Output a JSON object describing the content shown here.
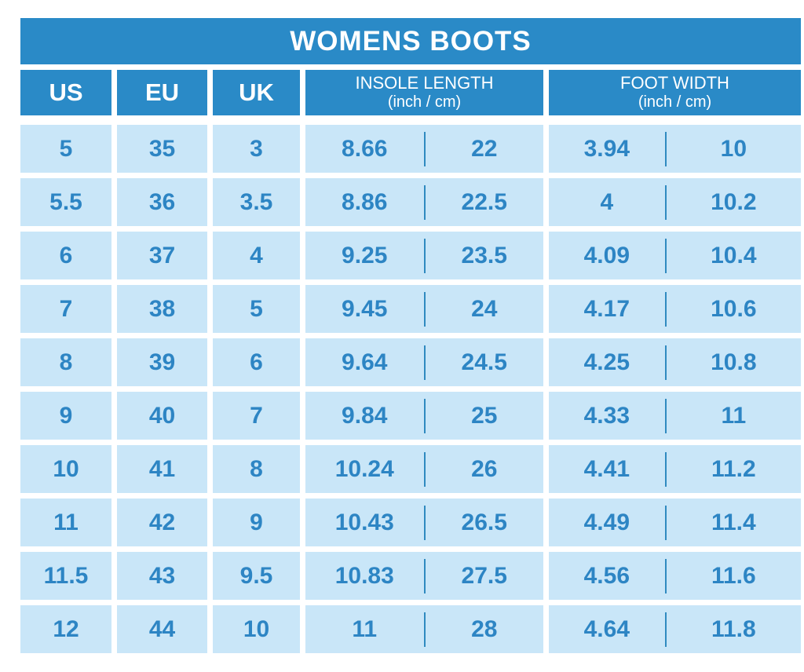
{
  "title": "WOMENS BOOTS",
  "colors": {
    "header_blue": "#2a8ac7",
    "cell_light_blue": "#c9e6f8",
    "data_text_blue": "#2d85c4",
    "divider_blue": "#2f8ac0",
    "background": "#ffffff"
  },
  "header": {
    "us": "US",
    "eu": "EU",
    "uk": "UK",
    "insole": {
      "label": "INSOLE LENGTH",
      "sub": "(inch / cm)"
    },
    "foot": {
      "label": "FOOT WIDTH",
      "sub": "(inch / cm)"
    }
  },
  "rows": [
    {
      "us": "5",
      "eu": "35",
      "uk": "3",
      "insole_inch": "8.66",
      "insole_cm": "22",
      "foot_inch": "3.94",
      "foot_cm": "10"
    },
    {
      "us": "5.5",
      "eu": "36",
      "uk": "3.5",
      "insole_inch": "8.86",
      "insole_cm": "22.5",
      "foot_inch": "4",
      "foot_cm": "10.2"
    },
    {
      "us": "6",
      "eu": "37",
      "uk": "4",
      "insole_inch": "9.25",
      "insole_cm": "23.5",
      "foot_inch": "4.09",
      "foot_cm": "10.4"
    },
    {
      "us": "7",
      "eu": "38",
      "uk": "5",
      "insole_inch": "9.45",
      "insole_cm": "24",
      "foot_inch": "4.17",
      "foot_cm": "10.6"
    },
    {
      "us": "8",
      "eu": "39",
      "uk": "6",
      "insole_inch": "9.64",
      "insole_cm": "24.5",
      "foot_inch": "4.25",
      "foot_cm": "10.8"
    },
    {
      "us": "9",
      "eu": "40",
      "uk": "7",
      "insole_inch": "9.84",
      "insole_cm": "25",
      "foot_inch": "4.33",
      "foot_cm": "11"
    },
    {
      "us": "10",
      "eu": "41",
      "uk": "8",
      "insole_inch": "10.24",
      "insole_cm": "26",
      "foot_inch": "4.41",
      "foot_cm": "11.2"
    },
    {
      "us": "11",
      "eu": "42",
      "uk": "9",
      "insole_inch": "10.43",
      "insole_cm": "26.5",
      "foot_inch": "4.49",
      "foot_cm": "11.4"
    },
    {
      "us": "11.5",
      "eu": "43",
      "uk": "9.5",
      "insole_inch": "10.83",
      "insole_cm": "27.5",
      "foot_inch": "4.56",
      "foot_cm": "11.6"
    },
    {
      "us": "12",
      "eu": "44",
      "uk": "10",
      "insole_inch": "11",
      "insole_cm": "28",
      "foot_inch": "4.64",
      "foot_cm": "11.8"
    }
  ],
  "chart_data": {
    "type": "table",
    "title": "WOMENS BOOTS",
    "columns": [
      "US",
      "EU",
      "UK",
      "INSOLE LENGTH inch",
      "INSOLE LENGTH cm",
      "FOOT WIDTH inch",
      "FOOT WIDTH cm"
    ],
    "rows": [
      [
        5,
        35,
        3,
        8.66,
        22,
        3.94,
        10
      ],
      [
        5.5,
        36,
        3.5,
        8.86,
        22.5,
        4,
        10.2
      ],
      [
        6,
        37,
        4,
        9.25,
        23.5,
        4.09,
        10.4
      ],
      [
        7,
        38,
        5,
        9.45,
        24,
        4.17,
        10.6
      ],
      [
        8,
        39,
        6,
        9.64,
        24.5,
        4.25,
        10.8
      ],
      [
        9,
        40,
        7,
        9.84,
        25,
        4.33,
        11
      ],
      [
        10,
        41,
        8,
        10.24,
        26,
        4.41,
        11.2
      ],
      [
        11,
        42,
        9,
        10.43,
        26.5,
        4.49,
        11.4
      ],
      [
        11.5,
        43,
        9.5,
        10.83,
        27.5,
        4.56,
        11.6
      ],
      [
        12,
        44,
        10,
        11,
        28,
        4.64,
        11.8
      ]
    ]
  }
}
